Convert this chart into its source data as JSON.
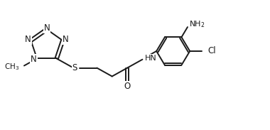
{
  "bg_color": "#ffffff",
  "line_color": "#1a1a1a",
  "text_color": "#1a1a1a",
  "figsize": [
    3.8,
    1.83
  ],
  "dpi": 100,
  "xlim": [
    0,
    10
  ],
  "ylim": [
    0,
    5
  ],
  "lw": 1.4
}
